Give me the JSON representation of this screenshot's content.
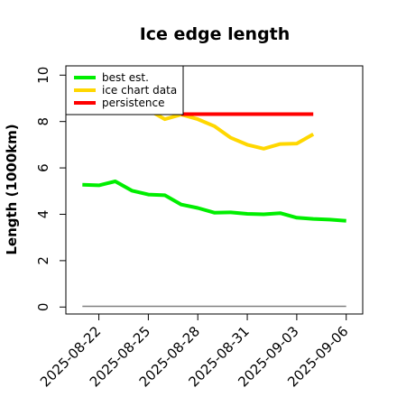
{
  "chart_data": {
    "type": "line",
    "title": "Ice edge length",
    "xlabel": "",
    "ylabel": "Length (1000km)",
    "x_ticks": [
      "2025-08-22",
      "2025-08-25",
      "2025-08-28",
      "2025-08-31",
      "2025-09-03",
      "2025-09-06"
    ],
    "xlim": [
      "2025-08-20",
      "2025-09-07"
    ],
    "ylim": [
      -0.3,
      10.4
    ],
    "y_ticks": [
      0,
      2,
      4,
      6,
      8,
      10
    ],
    "y_tick_labels": [
      "0",
      "2",
      "4",
      "6",
      "8",
      "10"
    ],
    "grid": false,
    "legend_position": "top-left",
    "series": [
      {
        "name": "best est.",
        "color": "#00ee00",
        "x": [
          "2025-08-21",
          "2025-08-22",
          "2025-08-23",
          "2025-08-24",
          "2025-08-25",
          "2025-08-26",
          "2025-08-27",
          "2025-08-28",
          "2025-08-29",
          "2025-08-30",
          "2025-08-31",
          "2025-09-01",
          "2025-09-02",
          "2025-09-03",
          "2025-09-04",
          "2025-09-05",
          "2025-09-06"
        ],
        "values": [
          5.27,
          5.25,
          5.42,
          5.02,
          4.85,
          4.82,
          4.42,
          4.27,
          4.07,
          4.08,
          4.02,
          4.0,
          4.05,
          3.85,
          3.8,
          3.77,
          3.72
        ]
      },
      {
        "name": "ice chart data",
        "color": "#ffd700",
        "x": [
          "2025-08-25",
          "2025-08-26",
          "2025-08-27",
          "2025-08-28",
          "2025-08-29",
          "2025-08-30",
          "2025-08-31",
          "2025-09-01",
          "2025-09-02",
          "2025-09-03",
          "2025-09-04"
        ],
        "values": [
          8.5,
          8.1,
          8.3,
          8.1,
          7.8,
          7.3,
          7.0,
          6.83,
          7.03,
          7.05,
          7.45
        ]
      },
      {
        "name": "persistence",
        "color": "#ff0000",
        "x": [
          "2025-08-27",
          "2025-09-04"
        ],
        "values": [
          8.32,
          8.32
        ]
      },
      {
        "name": "",
        "color": "#808080",
        "x": [
          "2025-08-21",
          "2025-09-06"
        ],
        "values": [
          0.03,
          0.03
        ]
      }
    ]
  }
}
